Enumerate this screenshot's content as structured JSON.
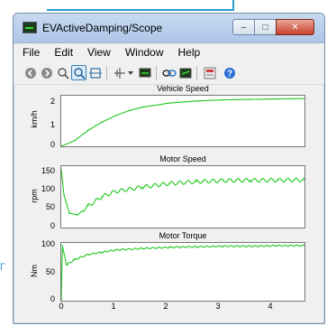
{
  "window": {
    "title": "EVActiveDamping/Scope",
    "controls": {
      "minimize": "–",
      "maximize": "□",
      "close": "✕"
    }
  },
  "menu": [
    "File",
    "Edit",
    "View",
    "Window",
    "Help"
  ],
  "toolbar": {
    "icons": [
      "back-icon",
      "forward-icon",
      "zoom-icon",
      "zoom-active-icon",
      "pan-icon",
      "cursor-icon",
      "dropdown-chevron-icon",
      "monitor-icon",
      "link-icon",
      "save-icon",
      "properties-icon",
      "help-icon"
    ]
  },
  "colors": {
    "trace": "#1ec81e",
    "accent": "#3c7fb1"
  },
  "plots": [
    {
      "title": "Vehicle Speed",
      "ylabel": "km/h",
      "yticks": [
        "2",
        "1",
        "0"
      ]
    },
    {
      "title": "Motor Speed",
      "ylabel": "rpm",
      "yticks": [
        "150",
        "100",
        "50",
        "0"
      ]
    },
    {
      "title": "Motor Torque",
      "ylabel": "Nm",
      "yticks": [
        "100",
        "50",
        "0"
      ]
    }
  ],
  "xticks": [
    "0",
    "1",
    "2",
    "3",
    "4"
  ],
  "chart_data": [
    {
      "type": "line",
      "title": "Vehicle Speed",
      "ylabel": "km/h",
      "xlim": [
        0,
        4.5
      ],
      "ylim": [
        0,
        2.2
      ],
      "x": [
        0,
        0.25,
        0.5,
        0.75,
        1,
        1.25,
        1.5,
        2,
        2.5,
        3,
        3.5,
        4,
        4.5
      ],
      "series": [
        {
          "values": [
            0,
            0.25,
            0.7,
            1.05,
            1.33,
            1.55,
            1.7,
            1.88,
            1.97,
            2.02,
            2.04,
            2.06,
            2.08
          ]
        }
      ]
    },
    {
      "type": "line",
      "title": "Motor Speed",
      "ylabel": "rpm",
      "xlim": [
        0,
        4.5
      ],
      "ylim": [
        0,
        170
      ],
      "x": [
        0,
        0.05,
        0.15,
        0.3,
        0.5,
        0.75,
        1,
        1.5,
        2,
        2.5,
        3,
        3.5,
        4,
        4.5
      ],
      "series": [
        {
          "values": [
            160,
            90,
            40,
            35,
            60,
            85,
            100,
            112,
            122,
            127,
            130,
            131,
            131,
            132
          ]
        }
      ]
    },
    {
      "type": "line",
      "title": "Motor Torque",
      "ylabel": "Nm",
      "xlim": [
        0,
        4.5
      ],
      "ylim": [
        0,
        105
      ],
      "x": [
        0,
        0.02,
        0.1,
        0.25,
        0.5,
        0.75,
        1,
        1.5,
        2,
        2.5,
        3,
        3.5,
        4,
        4.5
      ],
      "series": [
        {
          "values": [
            0,
            100,
            65,
            75,
            84,
            88,
            92,
            95,
            97,
            98,
            99,
            99,
            100,
            100
          ]
        }
      ]
    }
  ]
}
